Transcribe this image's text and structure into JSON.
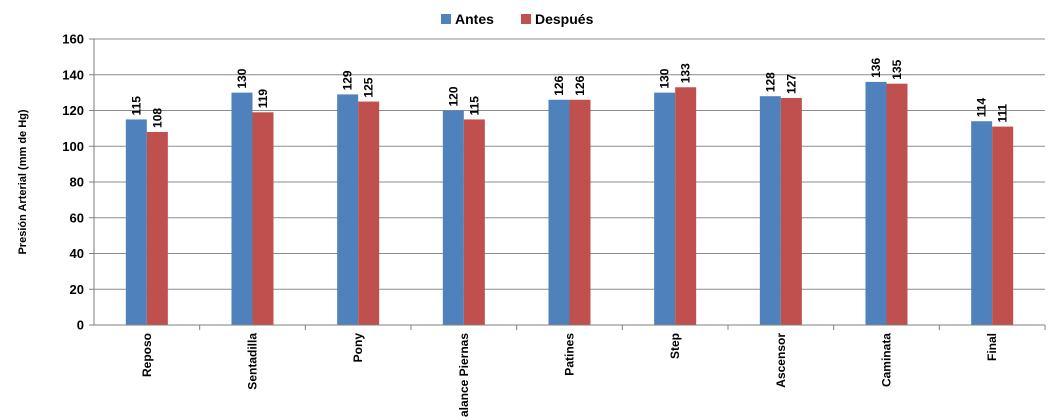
{
  "chart_data": {
    "type": "bar",
    "title": "",
    "xlabel": "",
    "ylabel": "Presión Arterial (mm de Hg)",
    "ylim": [
      0,
      160
    ],
    "yticks": [
      0,
      20,
      40,
      60,
      80,
      100,
      120,
      140,
      160
    ],
    "grid": true,
    "legend_position": "top-center",
    "categories": [
      "Reposo",
      "Sentadilla",
      "Pony",
      "Balance Piernas",
      "Patines",
      "Step",
      "Ascensor",
      "Caminata",
      "Final"
    ],
    "series": [
      {
        "name": "Antes",
        "color": "#4F81BD",
        "values": [
          115,
          130,
          129,
          120,
          126,
          130,
          128,
          136,
          114
        ]
      },
      {
        "name": "Después",
        "color": "#C0504D",
        "values": [
          108,
          119,
          125,
          115,
          126,
          133,
          127,
          135,
          111
        ]
      }
    ]
  }
}
